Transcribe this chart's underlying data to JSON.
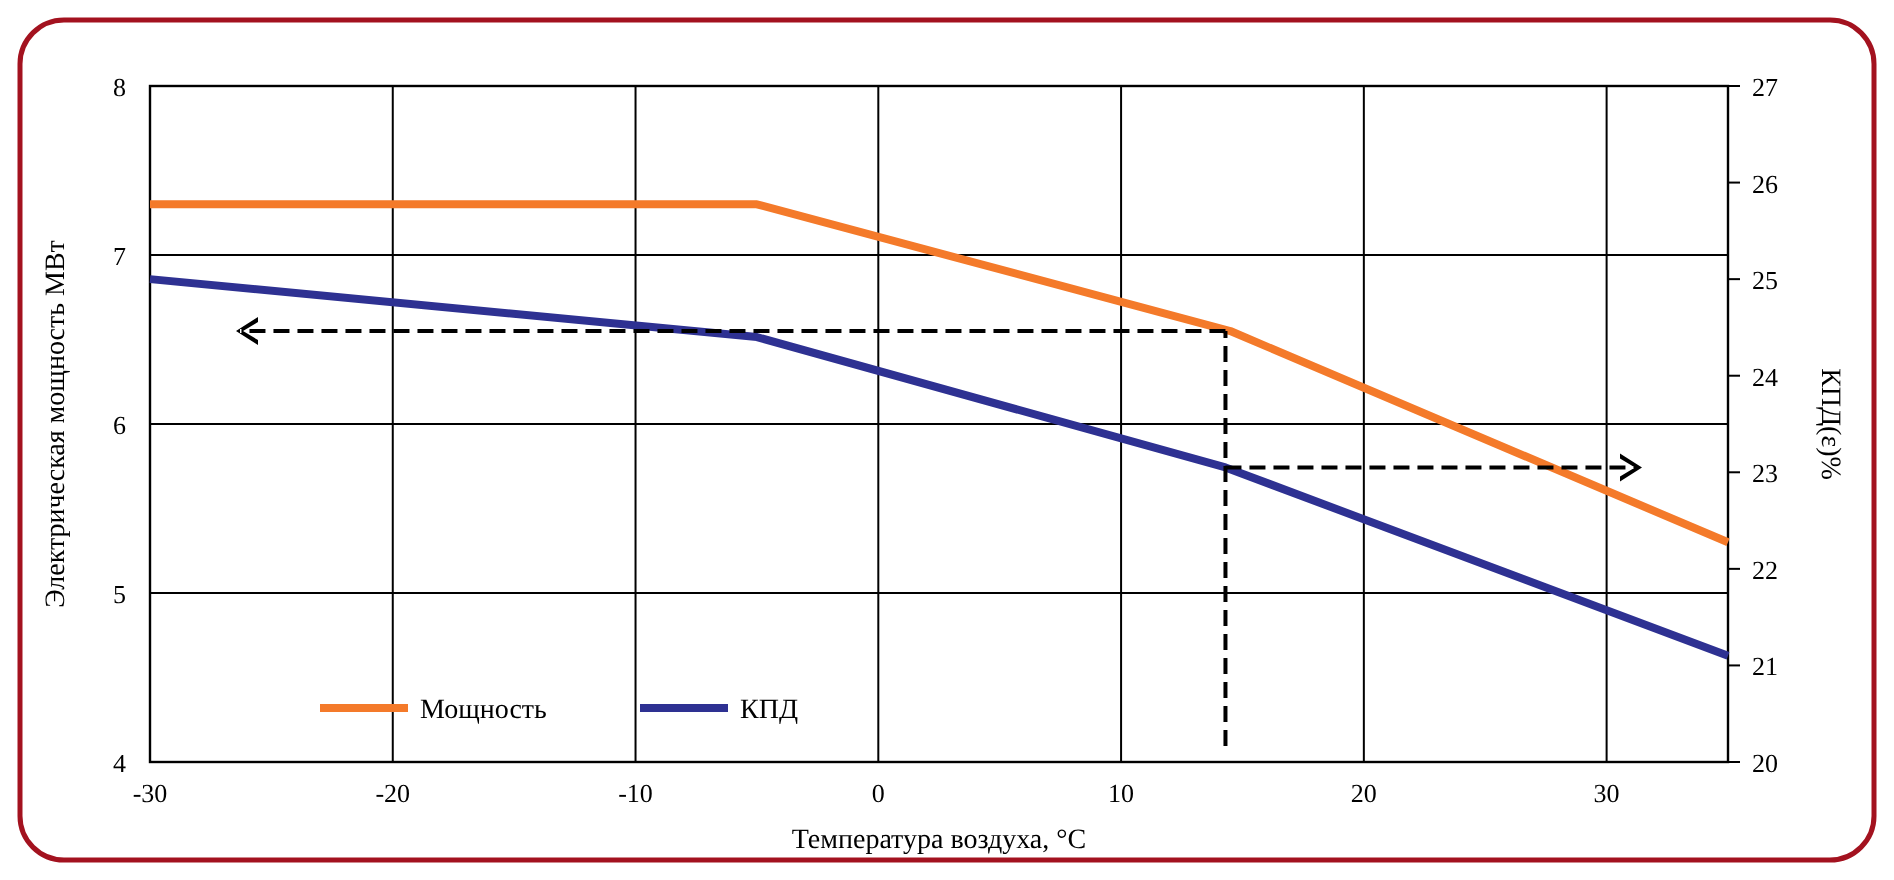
{
  "chart_data": {
    "type": "line",
    "xlabel": "Температура воздуха, °С",
    "ylabel": "Электрическая мощность  МВт",
    "y2label": "КПД(ε)%",
    "xlim": [
      -30,
      35
    ],
    "xticks": [
      -30,
      -20,
      -10,
      0,
      10,
      20,
      30
    ],
    "ylim": [
      4,
      8
    ],
    "yticks": [
      4,
      5,
      6,
      7,
      8
    ],
    "y2lim": [
      20,
      27
    ],
    "y2ticks": [
      20,
      21,
      22,
      23,
      24,
      25,
      26,
      27
    ],
    "grid": true,
    "legend": "bottom left",
    "marker": "none",
    "line_style": "solid",
    "series": [
      {
        "name": "Мощность",
        "color": "#f47a2a",
        "x": [
          -30,
          -5,
          14.5,
          35
        ],
        "values": [
          7.3,
          7.3,
          6.55,
          5.3
        ]
      },
      {
        "name": "КПД",
        "color": "#2e3192",
        "axis": "y2",
        "x": [
          -30,
          -5,
          14.3,
          35
        ],
        "values": [
          25.0,
          24.4,
          23.05,
          21.1
        ]
      }
    ]
  }
}
